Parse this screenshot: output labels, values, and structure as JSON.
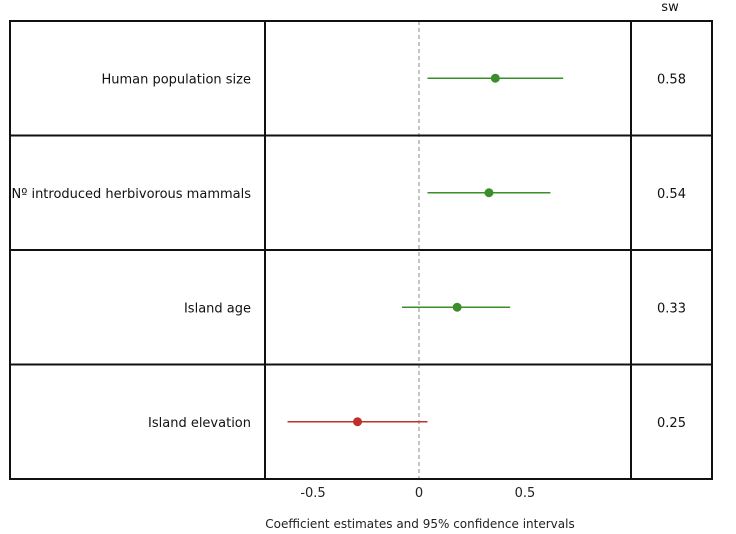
{
  "chart_data": {
    "type": "forest",
    "title": "",
    "xlabel": "Coefficient estimates and 95% confidence intervals",
    "ylabel": "",
    "xlim": [
      -0.65,
      1.0
    ],
    "xticks": [
      -0.5,
      0,
      0.5
    ],
    "xtick_labels": [
      "-0.5",
      "0",
      "0.5"
    ],
    "reference_line": 0,
    "sw_header": "sw",
    "grid": false,
    "rows": [
      {
        "label": "Human population size",
        "estimate": 0.36,
        "lower": 0.04,
        "upper": 0.68,
        "sw": "0.58",
        "color": "#3a8f2a"
      },
      {
        "label": "Nº introduced herbivorous mammals",
        "estimate": 0.33,
        "lower": 0.04,
        "upper": 0.62,
        "sw": "0.54",
        "color": "#3a8f2a"
      },
      {
        "label": "Island age",
        "estimate": 0.18,
        "lower": -0.08,
        "upper": 0.43,
        "sw": "0.33",
        "color": "#3a8f2a"
      },
      {
        "label": "Island elevation",
        "estimate": -0.29,
        "lower": -0.62,
        "upper": 0.04,
        "sw": "0.25",
        "color": "#c0302a"
      }
    ]
  }
}
